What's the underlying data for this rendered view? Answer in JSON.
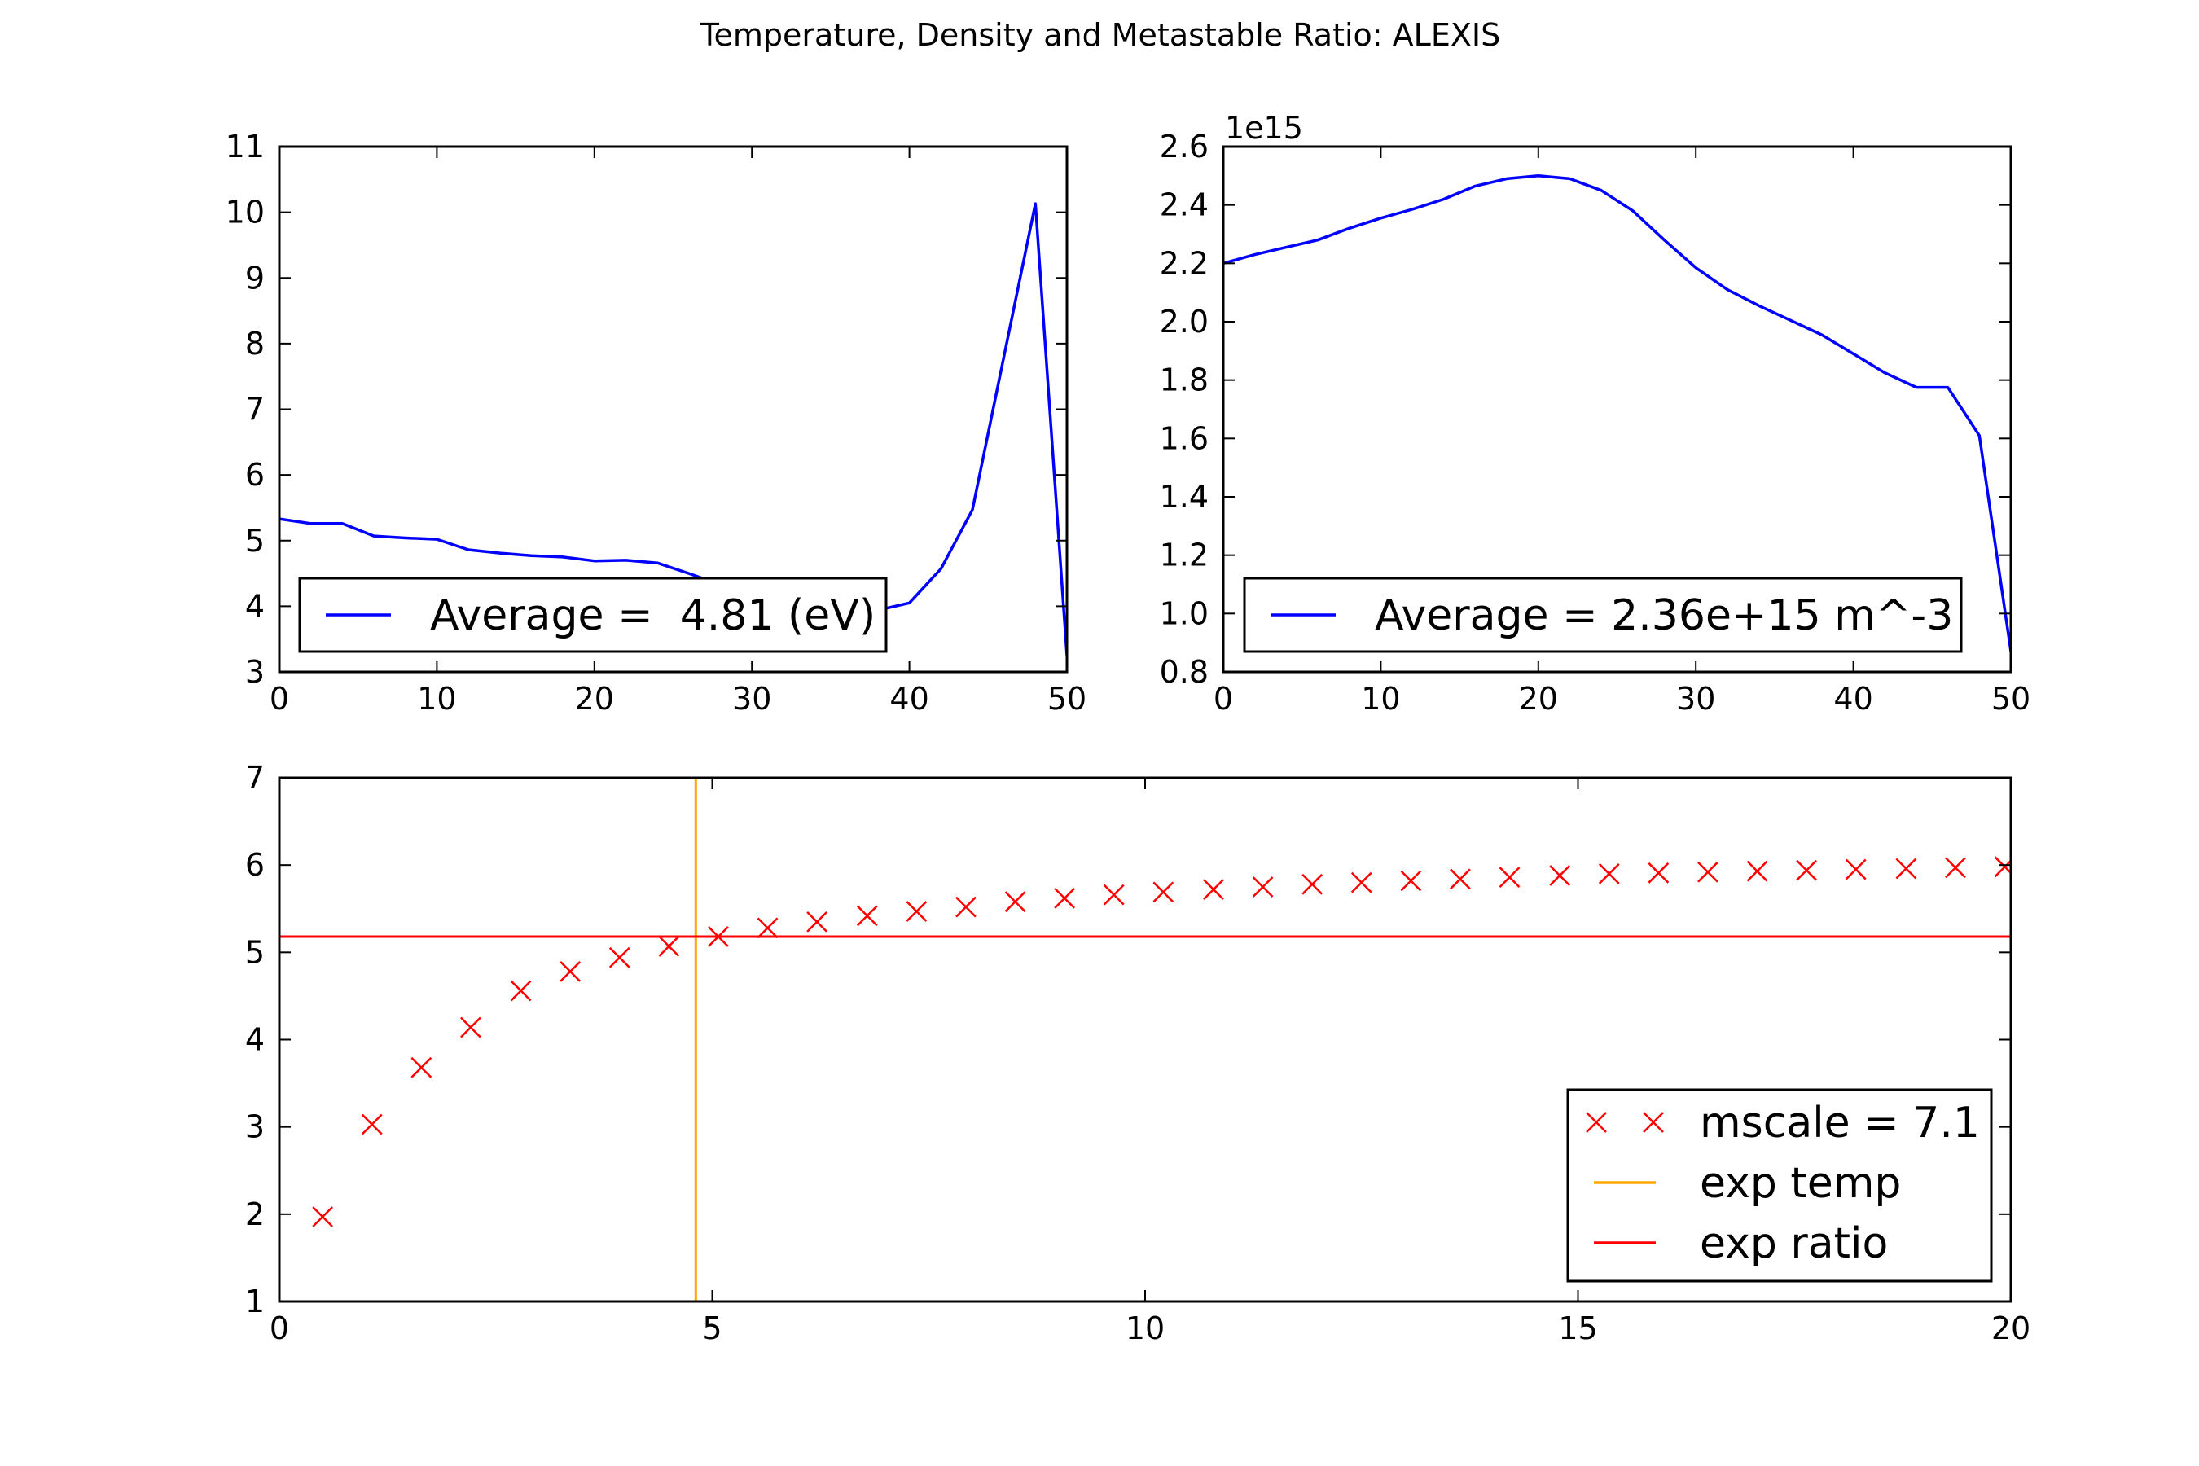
{
  "figure": {
    "title": "Temperature, Density and Metastable Ratio: ALEXIS",
    "background": "#ffffff"
  },
  "chart_data": [
    {
      "id": "temperature",
      "type": "line",
      "xlim": [
        0,
        50
      ],
      "ylim": [
        3,
        11
      ],
      "xticks": [
        0,
        10,
        20,
        30,
        40,
        50
      ],
      "yticks": [
        3,
        4,
        5,
        6,
        7,
        8,
        9,
        10,
        11
      ],
      "grid": false,
      "legend": {
        "position": "lower-left"
      },
      "series": [
        {
          "name": "Average =  4.81 (eV)",
          "color": "#0000ff",
          "x": [
            0,
            2,
            4,
            6,
            8,
            10,
            12,
            14,
            16,
            18,
            20,
            22,
            24,
            26,
            28,
            30,
            32,
            34,
            36,
            38,
            40,
            42,
            44,
            46,
            48,
            50
          ],
          "y": [
            5.33,
            5.26,
            5.26,
            5.07,
            5.04,
            5.02,
            4.86,
            4.81,
            4.77,
            4.75,
            4.69,
            4.7,
            4.66,
            4.5,
            4.33,
            4.2,
            4.08,
            4.0,
            3.95,
            3.94,
            4.05,
            4.57,
            5.47,
            7.8,
            10.13,
            3.25
          ]
        }
      ]
    },
    {
      "id": "density",
      "type": "line",
      "xlim": [
        0,
        50
      ],
      "ylim": [
        0.8,
        2.6
      ],
      "offset_label": "1e15",
      "xticks": [
        0,
        10,
        20,
        30,
        40,
        50
      ],
      "yticks": [
        0.8,
        1.0,
        1.2,
        1.4,
        1.6,
        1.8,
        2.0,
        2.2,
        2.4,
        2.6
      ],
      "ytick_labels": [
        "0.8",
        "1.0",
        "1.2",
        "1.4",
        "1.6",
        "1.8",
        "2.0",
        "2.2",
        "2.4",
        "2.6"
      ],
      "grid": false,
      "legend": {
        "position": "lower-left"
      },
      "series": [
        {
          "name": "Average = 2.36e+15 m^-3",
          "color": "#0000ff",
          "x": [
            0,
            2,
            4,
            6,
            8,
            10,
            12,
            14,
            16,
            18,
            20,
            22,
            24,
            26,
            28,
            30,
            32,
            34,
            36,
            38,
            40,
            42,
            44,
            46,
            48,
            50
          ],
          "y": [
            2.2,
            2.23,
            2.255,
            2.28,
            2.32,
            2.355,
            2.385,
            2.42,
            2.465,
            2.49,
            2.5,
            2.49,
            2.45,
            2.38,
            2.28,
            2.185,
            2.11,
            2.055,
            2.005,
            1.955,
            1.89,
            1.825,
            1.775,
            1.775,
            1.61,
            0.87
          ]
        }
      ]
    },
    {
      "id": "ratio",
      "type": "scatter",
      "xlim": [
        0,
        20
      ],
      "ylim": [
        1,
        7
      ],
      "xticks": [
        0,
        5,
        10,
        15,
        20
      ],
      "yticks": [
        1,
        2,
        3,
        4,
        5,
        6,
        7
      ],
      "grid": false,
      "legend": {
        "position": "lower-right"
      },
      "series": [
        {
          "name": "mscale = 7.1",
          "color": "#ff0000",
          "marker": "x",
          "x": [
            0.5,
            1.07,
            1.64,
            2.21,
            2.79,
            3.36,
            3.93,
            4.5,
            5.07,
            5.64,
            6.21,
            6.79,
            7.36,
            7.93,
            8.5,
            9.07,
            9.64,
            10.21,
            10.79,
            11.36,
            11.93,
            12.5,
            13.07,
            13.64,
            14.21,
            14.79,
            15.36,
            15.93,
            16.5,
            17.07,
            17.64,
            18.21,
            18.79,
            19.36,
            19.93
          ],
          "y": [
            1.97,
            3.03,
            3.68,
            4.14,
            4.56,
            4.78,
            4.94,
            5.07,
            5.18,
            5.28,
            5.35,
            5.42,
            5.47,
            5.52,
            5.58,
            5.62,
            5.66,
            5.69,
            5.72,
            5.75,
            5.78,
            5.8,
            5.82,
            5.84,
            5.86,
            5.88,
            5.9,
            5.91,
            5.92,
            5.93,
            5.94,
            5.95,
            5.96,
            5.97,
            5.98
          ]
        },
        {
          "name": "exp temp",
          "color": "#ffa500",
          "kind": "vline",
          "x": 4.81
        },
        {
          "name": "exp ratio",
          "color": "#ff0000",
          "kind": "hline",
          "y": 5.18
        }
      ]
    }
  ]
}
